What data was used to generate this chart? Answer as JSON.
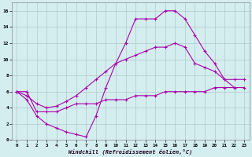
{
  "line1": {
    "x": [
      0,
      1,
      2,
      3,
      4,
      5,
      6,
      7,
      8,
      9,
      10,
      11,
      12,
      13,
      14,
      15,
      16,
      17,
      18,
      19,
      20,
      21,
      22
    ],
    "y": [
      6.0,
      5.0,
      3.0,
      2.0,
      1.5,
      1.0,
      0.7,
      0.4,
      3.0,
      6.5,
      9.5,
      12.0,
      15.0,
      15.0,
      15.0,
      16.0,
      16.0,
      15.0,
      13.0,
      11.0,
      9.5,
      7.5,
      6.5
    ]
  },
  "line2": {
    "x": [
      0,
      1,
      2,
      3,
      4,
      5,
      6,
      7,
      8,
      9,
      10,
      11,
      12,
      13,
      14,
      15,
      16,
      17,
      18,
      19,
      20,
      21,
      22,
      23
    ],
    "y": [
      6.0,
      5.5,
      4.5,
      4.0,
      4.2,
      4.8,
      5.5,
      6.5,
      7.5,
      8.5,
      9.5,
      10.0,
      10.5,
      11.0,
      11.5,
      11.5,
      12.0,
      11.5,
      9.5,
      9.0,
      8.5,
      7.5,
      7.5,
      7.5
    ]
  },
  "line3": {
    "x": [
      0,
      1,
      2,
      3,
      4,
      5,
      6,
      7,
      8,
      9,
      10,
      11,
      12,
      13,
      14,
      15,
      16,
      17,
      18,
      19,
      20,
      21,
      22,
      23
    ],
    "y": [
      6.0,
      6.0,
      3.5,
      3.5,
      3.5,
      4.0,
      4.5,
      4.5,
      4.5,
      5.0,
      5.0,
      5.0,
      5.5,
      5.5,
      5.5,
      6.0,
      6.0,
      6.0,
      6.0,
      6.0,
      6.5,
      6.5,
      6.5,
      6.5
    ]
  },
  "color": "#aa00aa",
  "bg_color": "#d4eef0",
  "grid_color": "#b0c8c8",
  "xlabel": "Windchill (Refroidissement éolien,°C)",
  "xlim": [
    -0.5,
    23.5
  ],
  "ylim": [
    0,
    17
  ],
  "yticks": [
    0,
    2,
    4,
    6,
    8,
    10,
    12,
    14,
    16
  ],
  "xticks": [
    0,
    1,
    2,
    3,
    4,
    5,
    6,
    7,
    8,
    9,
    10,
    11,
    12,
    13,
    14,
    15,
    16,
    17,
    18,
    19,
    20,
    21,
    22,
    23
  ],
  "marker": "+"
}
